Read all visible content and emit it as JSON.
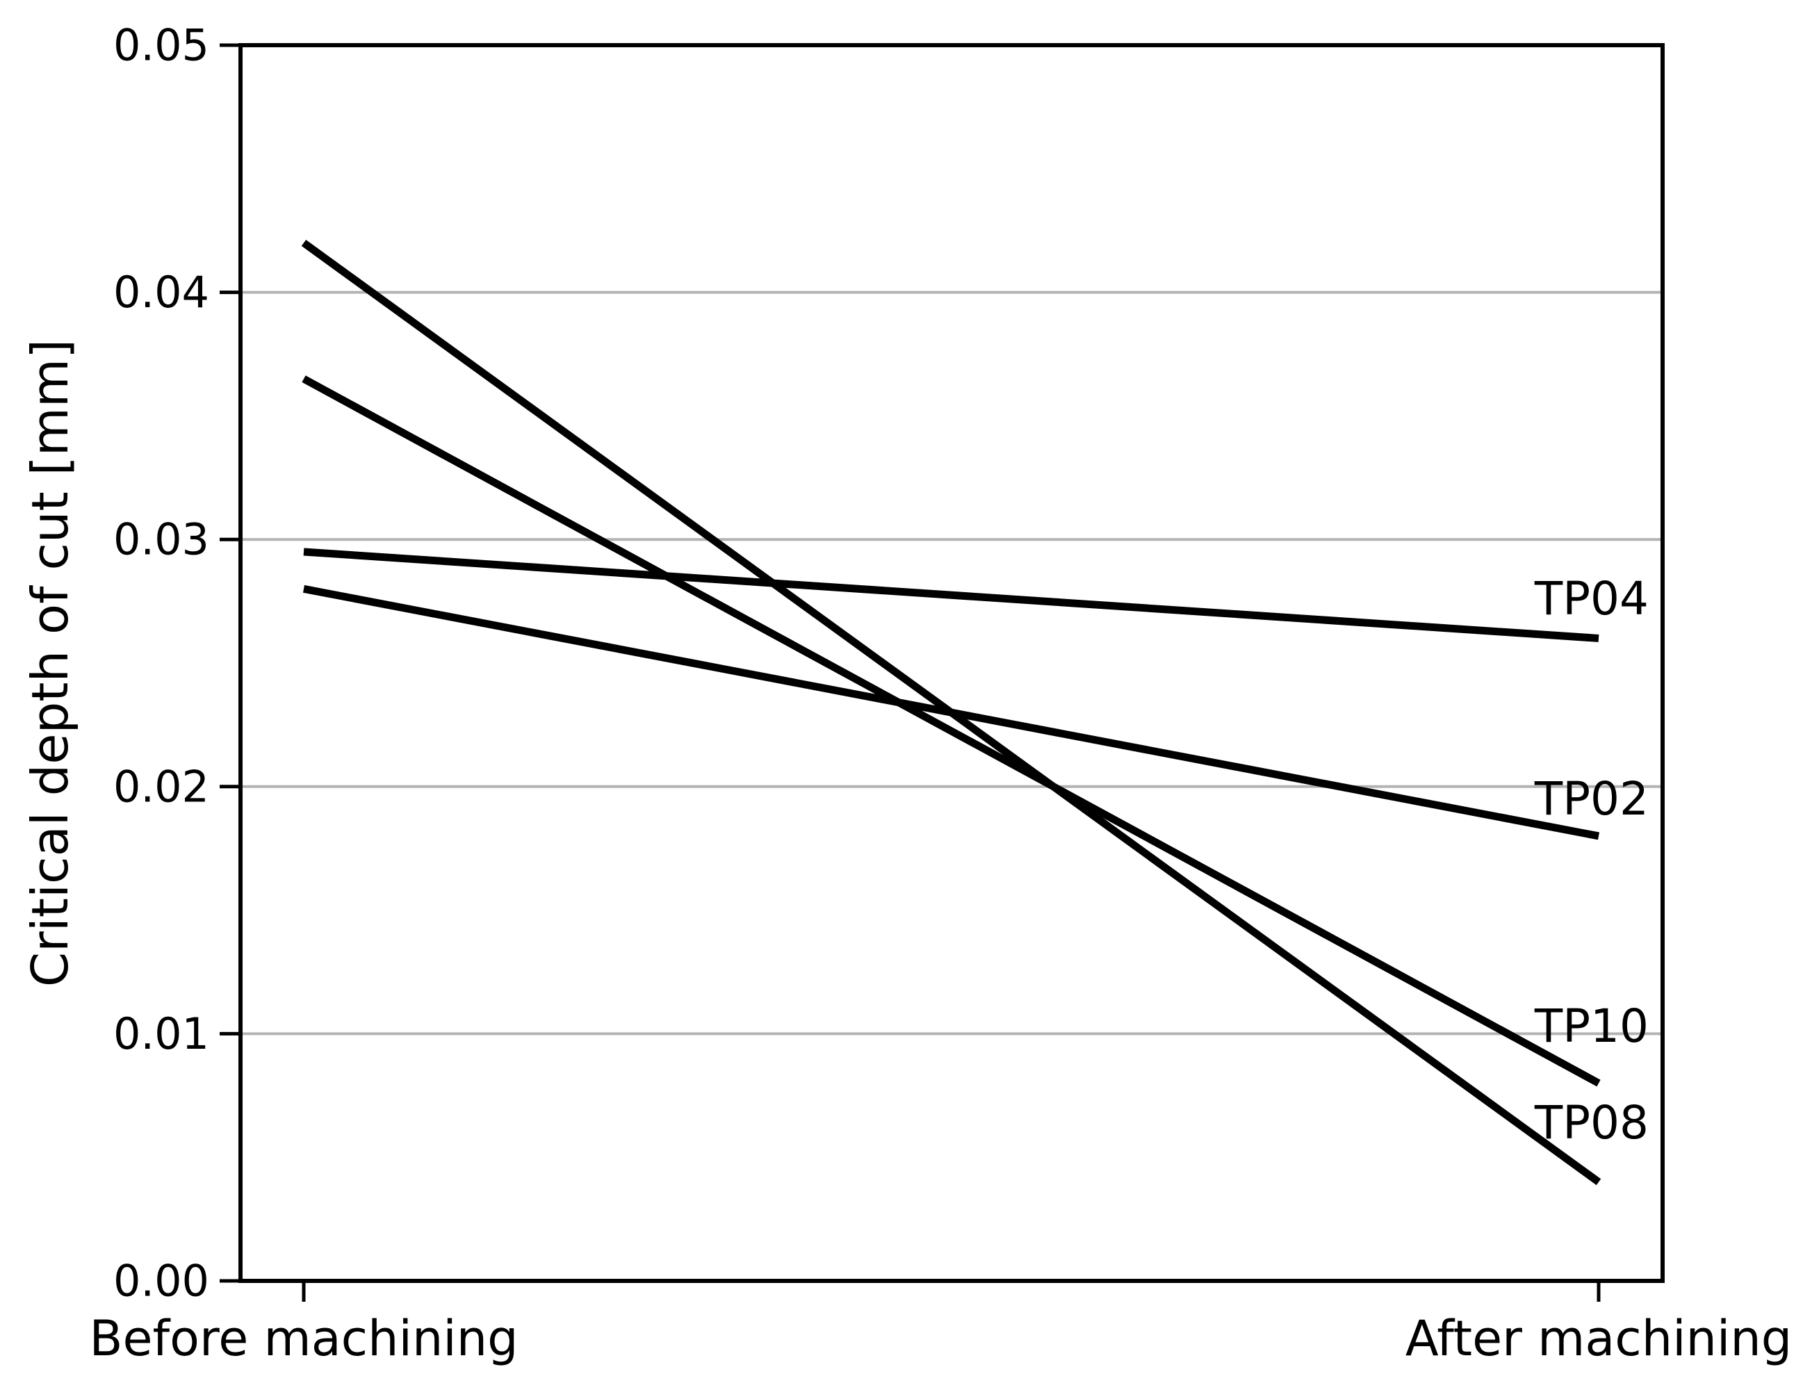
{
  "figure": {
    "background_color": "#ffffff",
    "text_color": "#000000"
  },
  "chart_data": {
    "type": "line",
    "subtype": "slope-chart",
    "title": "",
    "xlabel": "",
    "ylabel": "Critical depth of cut [mm]",
    "categories": [
      "Before machining",
      "After machining"
    ],
    "series": [
      {
        "name": "TP04",
        "values": [
          0.0295,
          0.026
        ],
        "label_value": 0.0276
      },
      {
        "name": "TP02",
        "values": [
          0.028,
          0.018
        ],
        "label_value": 0.0195
      },
      {
        "name": "TP10",
        "values": [
          0.0365,
          0.008
        ],
        "label_value": 0.0103
      },
      {
        "name": "TP08",
        "values": [
          0.042,
          0.004
        ],
        "label_value": 0.0064
      }
    ],
    "ylim": [
      0,
      0.05
    ],
    "yticks": [
      0,
      0.01,
      0.02,
      0.03,
      0.04,
      0.05
    ],
    "ytick_labels": [
      "0.00",
      "0.01",
      "0.02",
      "0.03",
      "0.04",
      "0.05"
    ],
    "grid": "horizontal",
    "grid_color": "#b3b3b3",
    "line_color": "#000000",
    "spine_color": "#000000",
    "legend": "inline-labels-at-right"
  }
}
